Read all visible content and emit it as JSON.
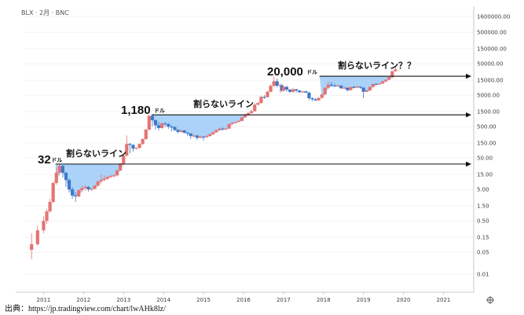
{
  "symbol_label": "BLX · 2月 · BNC",
  "source_text": "出典：https://jp.tradingview.com/chart/lwAHk8lz/",
  "settings_icon": "gear-icon",
  "colors": {
    "up": "#e57373",
    "down": "#3f78c6",
    "fill": "#8fc3f5",
    "line": "#111111",
    "grid": "#e6e6e6"
  },
  "chart_data": {
    "type": "candlestick",
    "y_scale": "log",
    "ylim": [
      0.003,
      3000000
    ],
    "y_ticks": [
      {
        "v": 1600000,
        "label": "1600000.00"
      },
      {
        "v": 500000,
        "label": "500000.00"
      },
      {
        "v": 150000,
        "label": "150000.00"
      },
      {
        "v": 50000,
        "label": "50000.00"
      },
      {
        "v": 15000,
        "label": "15000.00"
      },
      {
        "v": 5000,
        "label": "5000.00"
      },
      {
        "v": 1500,
        "label": "1500.00"
      },
      {
        "v": 500,
        "label": "500.00"
      },
      {
        "v": 150,
        "label": "150.00"
      },
      {
        "v": 50,
        "label": "50.00"
      },
      {
        "v": 15,
        "label": "15.00"
      },
      {
        "v": 5,
        "label": "5.00"
      },
      {
        "v": 1.5,
        "label": "1.50"
      },
      {
        "v": 0.5,
        "label": "0.50"
      },
      {
        "v": 0.15,
        "label": "0.15"
      },
      {
        "v": 0.05,
        "label": "0.05"
      },
      {
        "v": 0.01,
        "label": "0.01"
      }
    ],
    "x_ticks": [
      "2011",
      "2012",
      "2013",
      "2014",
      "2015",
      "2016",
      "2017",
      "2018",
      "2019",
      "2020",
      "2021"
    ],
    "x_range": [
      2010.5,
      2021.6
    ],
    "candles": [
      [
        2010.7,
        0.06,
        0.09,
        0.03,
        0.2
      ],
      [
        2010.85,
        0.09,
        0.25,
        0.08,
        0.35
      ],
      [
        2011.0,
        0.25,
        0.5,
        0.2,
        0.7
      ],
      [
        2011.08,
        0.5,
        1.0,
        0.4,
        1.2
      ],
      [
        2011.16,
        1.0,
        2.0,
        0.9,
        2.5
      ],
      [
        2011.24,
        2.0,
        8.0,
        1.8,
        9.0
      ],
      [
        2011.32,
        8.0,
        17.0,
        7.0,
        25
      ],
      [
        2011.4,
        17.0,
        28.0,
        14.0,
        32
      ],
      [
        2011.48,
        28.0,
        17.0,
        12.0,
        30
      ],
      [
        2011.56,
        17.0,
        10.0,
        6.0,
        18
      ],
      [
        2011.64,
        10.0,
        5.0,
        4.0,
        11
      ],
      [
        2011.72,
        5.0,
        3.2,
        2.5,
        6
      ],
      [
        2011.8,
        3.2,
        3.0,
        2.0,
        4
      ],
      [
        2011.88,
        3.0,
        4.7,
        2.8,
        5
      ],
      [
        2011.96,
        4.7,
        5.5,
        4.0,
        6.5
      ],
      [
        2012.04,
        5.5,
        6.0,
        4.5,
        7
      ],
      [
        2012.12,
        6.0,
        5.0,
        4.3,
        6.5
      ],
      [
        2012.2,
        5.0,
        5.2,
        4.5,
        5.5
      ],
      [
        2012.28,
        5.2,
        6.6,
        5.0,
        7
      ],
      [
        2012.36,
        6.6,
        9.0,
        6.2,
        9.5
      ],
      [
        2012.44,
        9.0,
        10.0,
        7.5,
        15
      ],
      [
        2012.52,
        10.0,
        11.0,
        9.0,
        14
      ],
      [
        2012.6,
        11.0,
        12.5,
        10.0,
        13
      ],
      [
        2012.68,
        12.5,
        13.5,
        11.0,
        14
      ],
      [
        2012.76,
        13.5,
        14.0,
        12.0,
        15
      ],
      [
        2012.84,
        14.0,
        20.0,
        13.0,
        22
      ],
      [
        2012.92,
        20.0,
        33.0,
        19.0,
        35
      ],
      [
        2013.0,
        33.0,
        60.0,
        30.0,
        70
      ],
      [
        2013.08,
        60.0,
        140.0,
        55.0,
        260
      ],
      [
        2013.16,
        140.0,
        130.0,
        70.0,
        150
      ],
      [
        2013.24,
        130.0,
        100.0,
        80.0,
        140
      ],
      [
        2013.32,
        100.0,
        105.0,
        95.0,
        110
      ],
      [
        2013.4,
        105.0,
        140.0,
        100.0,
        145
      ],
      [
        2013.48,
        140.0,
        200.0,
        130.0,
        210
      ],
      [
        2013.56,
        200.0,
        400.0,
        190.0,
        420
      ],
      [
        2013.64,
        400.0,
        1100.0,
        380.0,
        1180
      ],
      [
        2013.72,
        1100.0,
        800.0,
        500.0,
        1150
      ],
      [
        2013.8,
        800.0,
        550.0,
        400.0,
        850
      ],
      [
        2013.88,
        550.0,
        450.0,
        380.0,
        700
      ],
      [
        2013.96,
        450.0,
        630.0,
        420.0,
        680
      ],
      [
        2014.04,
        630.0,
        600.0,
        480.0,
        700
      ],
      [
        2014.12,
        600.0,
        500.0,
        420.0,
        650
      ],
      [
        2014.2,
        500.0,
        480.0,
        350.0,
        550
      ],
      [
        2014.28,
        480.0,
        390.0,
        360.0,
        520
      ],
      [
        2014.36,
        390.0,
        340.0,
        300.0,
        420
      ],
      [
        2014.44,
        340.0,
        375.0,
        320.0,
        400
      ],
      [
        2014.52,
        375.0,
        320.0,
        300.0,
        390
      ],
      [
        2014.6,
        320.0,
        300.0,
        250.0,
        330
      ],
      [
        2014.68,
        300.0,
        250.0,
        200.0,
        310
      ],
      [
        2014.76,
        250.0,
        260.0,
        220.0,
        270
      ],
      [
        2014.84,
        260.0,
        220.0,
        190.0,
        270
      ],
      [
        2014.92,
        220.0,
        240.0,
        210.0,
        260
      ],
      [
        2015.0,
        240.0,
        230.0,
        180.0,
        250
      ],
      [
        2015.08,
        230.0,
        250.0,
        220.0,
        270
      ],
      [
        2015.16,
        250.0,
        285.0,
        240.0,
        300
      ],
      [
        2015.24,
        285.0,
        330.0,
        270.0,
        340
      ],
      [
        2015.32,
        330.0,
        380.0,
        320.0,
        400
      ],
      [
        2015.4,
        380.0,
        430.0,
        370.0,
        460
      ],
      [
        2015.48,
        430.0,
        415.0,
        380.0,
        470
      ],
      [
        2015.56,
        415.0,
        430.0,
        400.0,
        450
      ],
      [
        2015.64,
        430.0,
        600.0,
        420.0,
        620
      ],
      [
        2015.72,
        600.0,
        650.0,
        570.0,
        700
      ],
      [
        2015.8,
        650.0,
        700.0,
        620.0,
        720
      ],
      [
        2015.88,
        700.0,
        760.0,
        690.0,
        800
      ],
      [
        2015.96,
        760.0,
        980.0,
        740.0,
        1000
      ],
      [
        2016.04,
        980.0,
        1200.0,
        950.0,
        1300
      ],
      [
        2016.12,
        1200.0,
        1350.0,
        1100.0,
        1450
      ],
      [
        2016.2,
        1350.0,
        1550.0,
        1300.0,
        1700
      ],
      [
        2016.28,
        1550.0,
        2500.0,
        1500.0,
        2800
      ],
      [
        2016.36,
        2500.0,
        2800.0,
        2300.0,
        3100
      ],
      [
        2016.44,
        2800.0,
        4400.0,
        2700.0,
        4900
      ],
      [
        2016.52,
        4400.0,
        4300.0,
        3800.0,
        5000
      ],
      [
        2016.6,
        4300.0,
        6400.0,
        4200.0,
        7000
      ],
      [
        2016.68,
        6400.0,
        9900.0,
        6200.0,
        11000
      ],
      [
        2016.76,
        9900.0,
        13800.0,
        9000.0,
        19500
      ],
      [
        2016.84,
        13800.0,
        10000.0,
        9000.0,
        17000
      ],
      [
        2016.92,
        10000.0,
        10300.0,
        6000.0,
        11700
      ],
      [
        2016.96,
        10300.0,
        6900.0,
        6500.0,
        11500
      ],
      [
        2017.0,
        6900.0,
        9200.0,
        6500.0,
        9900
      ],
      [
        2017.08,
        9200.0,
        7500.0,
        6400.0,
        9900
      ],
      [
        2017.16,
        7500.0,
        6400.0,
        5800.0,
        7800
      ],
      [
        2017.24,
        6400.0,
        7700.0,
        6000.0,
        8400
      ],
      [
        2017.32,
        7700.0,
        7000.0,
        6000.0,
        8000
      ],
      [
        2017.4,
        7000.0,
        6200.0,
        5900.0,
        7400
      ],
      [
        2017.48,
        6200.0,
        6600.0,
        5800.0,
        6800
      ],
      [
        2017.56,
        6600.0,
        6000.0,
        5900.0,
        7000
      ],
      [
        2017.64,
        6000.0,
        4000.0,
        3500.0,
        6500
      ],
      [
        2017.72,
        4000.0,
        3700.0,
        3200.0,
        4300
      ],
      [
        2017.8,
        3700.0,
        3400.0,
        3300.0,
        4100
      ],
      [
        2017.88,
        3400.0,
        4100.0,
        3400.0,
        4200
      ],
      [
        2017.96,
        4100.0,
        5300.0,
        3900.0,
        5500
      ],
      [
        2018.04,
        5300.0,
        8600.0,
        5000.0,
        9000
      ],
      [
        2018.12,
        8600.0,
        10800.0,
        7700.0,
        13800
      ],
      [
        2018.2,
        10800.0,
        10000.0,
        9000.0,
        13000
      ],
      [
        2018.28,
        10000.0,
        9600.0,
        9300.0,
        11500
      ],
      [
        2018.36,
        9600.0,
        10100.0,
        9500.0,
        10900
      ],
      [
        2018.44,
        10100.0,
        8300.0,
        7800.0,
        10500
      ],
      [
        2018.52,
        8300.0,
        8600.0,
        8100.0,
        9600
      ],
      [
        2018.6,
        8600.0,
        7200.0,
        6500.0,
        8800
      ],
      [
        2018.68,
        7200.0,
        9100.0,
        7000.0,
        9300
      ],
      [
        2018.76,
        9100.0,
        8800.0,
        8100.0,
        10000
      ],
      [
        2018.84,
        8800.0,
        9400.0,
        8300.0,
        9800
      ],
      [
        2018.92,
        9400.0,
        8700.0,
        8000.0,
        9500
      ],
      [
        2019.0,
        8700.0,
        6400.0,
        4000.0,
        8800
      ],
      [
        2019.08,
        6400.0,
        7000.0,
        6200.0,
        7500
      ],
      [
        2019.16,
        7000.0,
        9100.0,
        6900.0,
        9400
      ],
      [
        2019.24,
        9100.0,
        11300.0,
        8900.0,
        12000
      ],
      [
        2019.32,
        11300.0,
        10900.0,
        10800.0,
        12400
      ],
      [
        2019.4,
        10900.0,
        11700.0,
        10800.0,
        12000
      ],
      [
        2019.48,
        11700.0,
        13800.0,
        11600.0,
        14000
      ],
      [
        2019.56,
        13800.0,
        15500.0,
        12800.0,
        16000
      ],
      [
        2019.64,
        15500.0,
        18500.0,
        15000.0,
        19700
      ],
      [
        2019.72,
        18500.0,
        29000.0,
        17600.0,
        29300
      ],
      [
        2019.8,
        29000.0,
        33000.0,
        28000.0,
        42000
      ]
    ],
    "annotations": [
      {
        "price": "32",
        "unit": "ドル",
        "label": "割らないライン",
        "level": 32
      },
      {
        "price": "1,180",
        "unit": "ドル",
        "label": "割らないライン",
        "level": 1180
      },
      {
        "price": "20,000",
        "unit": "ドル",
        "label": "割らないライン？？",
        "level": 20000
      }
    ]
  }
}
